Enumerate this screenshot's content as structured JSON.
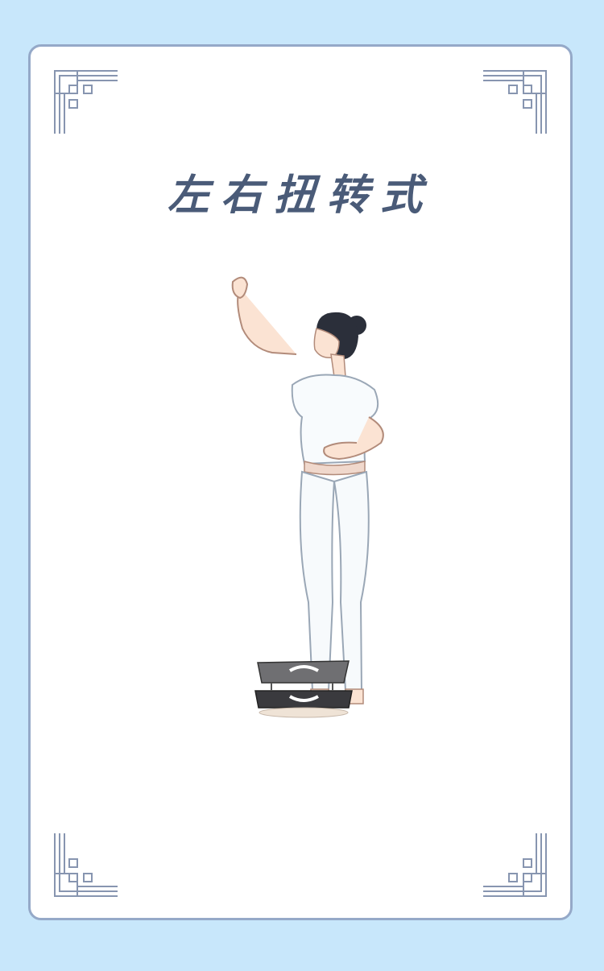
{
  "card": {
    "title": "左右扭转式"
  },
  "illustration": {
    "subject": "woman-standing-on-twist-board",
    "board_icon": "twist-board-icon"
  },
  "colors": {
    "background": "#c8e7fb",
    "card_border": "#95a9c8",
    "title": "#4a5b78",
    "ornament": "#8795b0"
  }
}
